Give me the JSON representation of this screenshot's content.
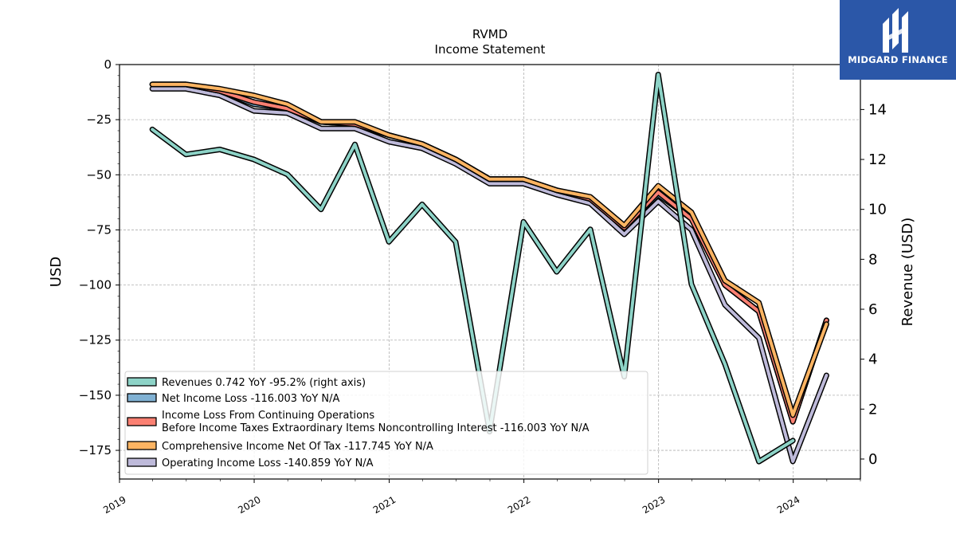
{
  "brand": {
    "name": "MIDGARD FINANCE",
    "color": "#2b57a8"
  },
  "chart_data": {
    "type": "line",
    "title": "RVMD",
    "subtitle": "Income Statement",
    "ylabel": "USD",
    "ylabel_right": "Revenue (USD)",
    "ylim": [
      -188,
      0
    ],
    "ylim_right": [
      -0.8,
      15.8
    ],
    "xlim": [
      "2019-01-01",
      "2024-07-01"
    ],
    "y_ticks": [
      0,
      -25,
      -50,
      -75,
      -100,
      -125,
      -150,
      -175
    ],
    "y_tick_labels": [
      "0",
      "−25",
      "−50",
      "−75",
      "−100",
      "−125",
      "−150",
      "−175"
    ],
    "y_right_ticks": [
      0,
      2,
      4,
      6,
      8,
      10,
      12,
      14
    ],
    "x_ticks": [
      "2019-01-01",
      "2020-01-01",
      "2021-01-01",
      "2022-01-01",
      "2023-01-01",
      "2024-01-01"
    ],
    "x_tick_labels": [
      "2019",
      "2020",
      "2021",
      "2022",
      "2023",
      "2024"
    ],
    "grid": true,
    "legend_position": "lower-left",
    "series": [
      {
        "name": "Revenues",
        "legend": "Revenues  0.742 YoY -95.2% (right axis)",
        "axis": "right",
        "color": "#8dd3c7",
        "x": [
          "2019-03-31",
          "2019-06-30",
          "2019-09-30",
          "2019-12-31",
          "2020-03-31",
          "2020-06-30",
          "2020-09-30",
          "2020-12-31",
          "2021-03-31",
          "2021-06-30",
          "2021-09-30",
          "2021-12-31",
          "2022-03-31",
          "2022-06-30",
          "2022-09-30",
          "2022-12-31",
          "2023-03-31",
          "2023-06-30",
          "2023-09-30",
          "2023-12-31"
        ],
        "y": [
          13.2,
          12.2,
          12.4,
          12.0,
          11.4,
          10.0,
          12.6,
          8.7,
          10.2,
          8.7,
          1.1,
          9.5,
          7.5,
          9.2,
          3.3,
          15.4,
          7.0,
          3.8,
          -0.1,
          0.74
        ]
      },
      {
        "name": "Net Income Loss",
        "legend": "Net Income Loss  -116.003 YoY N/A",
        "axis": "left",
        "color": "#80b1d3",
        "x": [
          "2019-03-31",
          "2019-06-30",
          "2019-09-30",
          "2019-12-31",
          "2020-03-31",
          "2020-06-30",
          "2020-09-30",
          "2020-12-31",
          "2021-03-31",
          "2021-06-30",
          "2021-09-30",
          "2021-12-31",
          "2022-03-31",
          "2022-06-30",
          "2022-09-30",
          "2022-12-31",
          "2023-03-31",
          "2023-06-30",
          "2023-09-30",
          "2023-12-31",
          "2024-03-31"
        ],
        "y": [
          -9,
          -9,
          -12,
          -18,
          -20,
          -26,
          -27,
          -32,
          -36,
          -43,
          -52,
          -52,
          -57,
          -61,
          -74,
          -59,
          -70,
          -100,
          -112,
          -162,
          -116
        ]
      },
      {
        "name": "Income Loss From Continuing Operations Before Income Taxes Extraordinary Items Noncontrolling Interest",
        "legend": "Income Loss From Continuing Operations\nBefore Income Taxes Extraordinary Items Noncontrolling Interest  -116.003 YoY N/A",
        "axis": "left",
        "color": "#fb8072",
        "x": [
          "2019-03-31",
          "2019-06-30",
          "2019-09-30",
          "2019-12-31",
          "2020-03-31",
          "2020-06-30",
          "2020-09-30",
          "2020-12-31",
          "2021-03-31",
          "2021-06-30",
          "2021-09-30",
          "2021-12-31",
          "2022-03-31",
          "2022-06-30",
          "2022-09-30",
          "2022-12-31",
          "2023-03-31",
          "2023-06-30",
          "2023-09-30",
          "2023-12-31",
          "2024-03-31"
        ],
        "y": [
          -9,
          -9,
          -12,
          -17,
          -20,
          -26,
          -27,
          -32,
          -36,
          -43,
          -52,
          -52,
          -57,
          -61,
          -74,
          -58,
          -70,
          -100,
          -112,
          -162,
          -116
        ]
      },
      {
        "name": "Comprehensive Income Net Of Tax",
        "legend": "Comprehensive Income Net Of Tax  -117.745 YoY N/A",
        "axis": "left",
        "color": "#fdb462",
        "x": [
          "2019-03-31",
          "2019-06-30",
          "2019-09-30",
          "2019-12-31",
          "2020-03-31",
          "2020-06-30",
          "2020-09-30",
          "2020-12-31",
          "2021-03-31",
          "2021-06-30",
          "2021-09-30",
          "2021-12-31",
          "2022-03-31",
          "2022-06-30",
          "2022-09-30",
          "2022-12-31",
          "2023-03-31",
          "2023-06-30",
          "2023-09-30",
          "2023-12-31",
          "2024-03-31"
        ],
        "y": [
          -9,
          -9,
          -11,
          -14,
          -18,
          -26,
          -26,
          -32,
          -36,
          -43,
          -52,
          -52,
          -57,
          -60,
          -73,
          -55,
          -67,
          -98,
          -108,
          -159,
          -117.7
        ]
      },
      {
        "name": "Operating Income Loss",
        "legend": "Operating Income Loss  -140.859 YoY N/A",
        "axis": "left",
        "color": "#bebada",
        "x": [
          "2019-03-31",
          "2019-06-30",
          "2019-09-30",
          "2019-12-31",
          "2020-03-31",
          "2020-06-30",
          "2020-09-30",
          "2020-12-31",
          "2021-03-31",
          "2021-06-30",
          "2021-09-30",
          "2021-12-31",
          "2022-03-31",
          "2022-06-30",
          "2022-09-30",
          "2022-12-31",
          "2023-03-31",
          "2023-06-30",
          "2023-09-30",
          "2023-12-31",
          "2024-03-31"
        ],
        "y": [
          -11,
          -11,
          -14,
          -21,
          -22,
          -29,
          -29,
          -35,
          -38,
          -45,
          -54,
          -54,
          -59,
          -63,
          -77,
          -62,
          -75,
          -109,
          -124,
          -180,
          -141
        ]
      }
    ]
  }
}
